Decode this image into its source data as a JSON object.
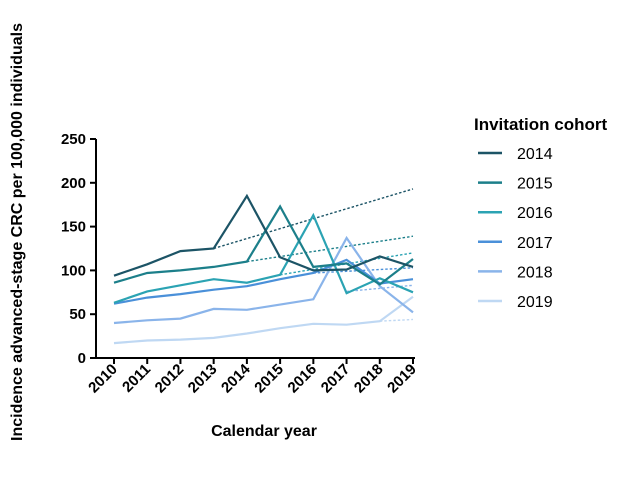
{
  "chart_data": {
    "type": "line",
    "xlabel": "Calendar year",
    "ylabel": "Incidence advanced-stage CRC per 100,000 individuals",
    "x": [
      2010,
      2011,
      2012,
      2013,
      2014,
      2015,
      2016,
      2017,
      2018,
      2019
    ],
    "ylim": [
      0,
      250
    ],
    "yticks": [
      0,
      50,
      100,
      150,
      200,
      250
    ],
    "grid": false,
    "legend_title": "Invitation cohort",
    "legend_position": "right",
    "series": [
      {
        "name": "2014",
        "color": "#1c5466",
        "values": [
          94,
          107,
          122,
          125,
          185,
          115,
          100,
          101,
          116,
          104
        ],
        "trend_x": [
          2013,
          2019
        ],
        "trend_y": [
          125,
          193
        ]
      },
      {
        "name": "2015",
        "color": "#1c7f8a",
        "values": [
          86,
          97,
          100,
          104,
          110,
          173,
          104,
          108,
          84,
          113
        ],
        "trend_x": [
          2014,
          2019
        ],
        "trend_y": [
          110,
          139
        ]
      },
      {
        "name": "2016",
        "color": "#2ba3b3",
        "values": [
          63,
          76,
          83,
          90,
          86,
          95,
          163,
          74,
          91,
          75
        ],
        "trend_x": [
          2015,
          2019
        ],
        "trend_y": [
          95,
          120
        ]
      },
      {
        "name": "2017",
        "color": "#4a90d9",
        "values": [
          62,
          69,
          73,
          78,
          82,
          90,
          97,
          112,
          85,
          90
        ],
        "trend_x": [
          2016,
          2019
        ],
        "trend_y": [
          97,
          103
        ]
      },
      {
        "name": "2018",
        "color": "#8ab4ea",
        "values": [
          40,
          43,
          45,
          56,
          55,
          61,
          67,
          137,
          82,
          52
        ],
        "trend_x": [
          2017,
          2019
        ],
        "trend_y": [
          76,
          83
        ]
      },
      {
        "name": "2019",
        "color": "#bfd8f3",
        "values": [
          17,
          20,
          21,
          23,
          28,
          34,
          39,
          38,
          42,
          70
        ],
        "trend_x": [
          2018,
          2019
        ],
        "trend_y": [
          42,
          44
        ]
      }
    ]
  }
}
